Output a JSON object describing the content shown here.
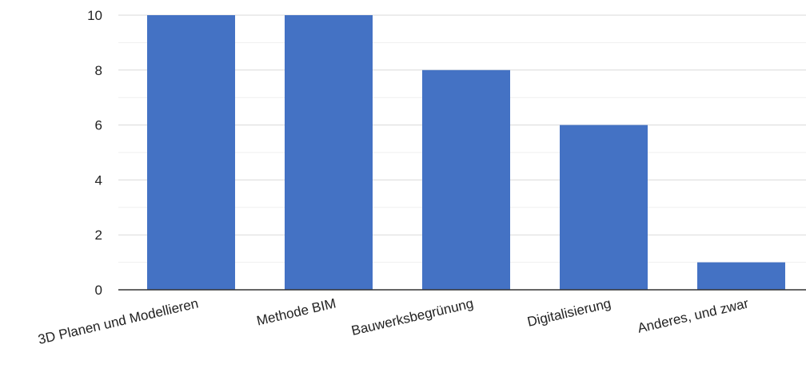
{
  "chart_data": {
    "type": "bar",
    "title": "",
    "xlabel": "",
    "ylabel": "",
    "categories": [
      "3D Planen und Modellieren",
      "Methode BIM",
      "Bauwerksbegrünung",
      "Digitalisierung",
      "Anderes, und zwar"
    ],
    "values": [
      10,
      10,
      8,
      6,
      1
    ],
    "ylim": [
      0,
      10
    ],
    "yticks": [
      "0",
      "2",
      "4",
      "6",
      "8",
      "10"
    ],
    "grid": true,
    "minor_grid": true,
    "legend": "none",
    "bar_color": "#4472c4",
    "grid_color": "#d9d9d9",
    "minor_grid_color": "#efefef",
    "axis_color": "#333333",
    "label_color": "#222222"
  }
}
